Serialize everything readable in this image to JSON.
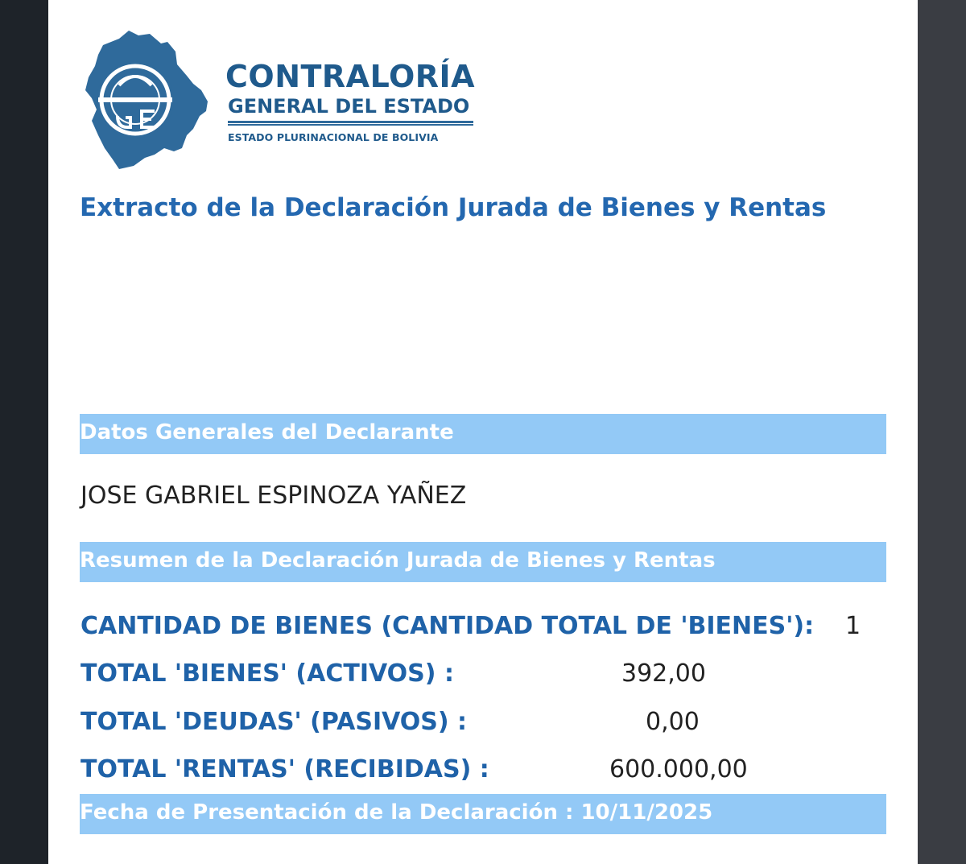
{
  "header": {
    "brand_title": "CONTRALORÍA",
    "brand_subtitle": "GENERAL DEL ESTADO",
    "brand_small": "ESTADO PLURINACIONAL DE BOLIVIA",
    "logo_colors": {
      "map": "#2f6a9b",
      "ring": "#ffffff"
    }
  },
  "document": {
    "title": "Extracto de la Declaración Jurada de Bienes y Rentas"
  },
  "sections": {
    "general": {
      "heading": "Datos Generales del Declarante",
      "name": "JOSE GABRIEL ESPINOZA YAÑEZ"
    },
    "summary": {
      "heading": "Resumen de la Declaración Jurada de Bienes y Rentas",
      "rows": [
        {
          "label": "CANTIDAD DE BIENES (CANTIDAD TOTAL DE 'BIENES'):",
          "value": "1"
        },
        {
          "label": "TOTAL 'BIENES' (ACTIVOS) :",
          "value": "392,00"
        },
        {
          "label": "TOTAL 'DEUDAS' (PASIVOS) :",
          "value": "0,00"
        },
        {
          "label": "TOTAL 'RENTAS' (RECIBIDAS) :",
          "value": "600.000,00"
        }
      ]
    },
    "footer": {
      "date_line": "Fecha de Presentación de la Declaración : 10/11/2025"
    }
  },
  "colors": {
    "accent": "#1f62a8",
    "band": "#93c9f6",
    "brand": "#1f5a8c"
  }
}
